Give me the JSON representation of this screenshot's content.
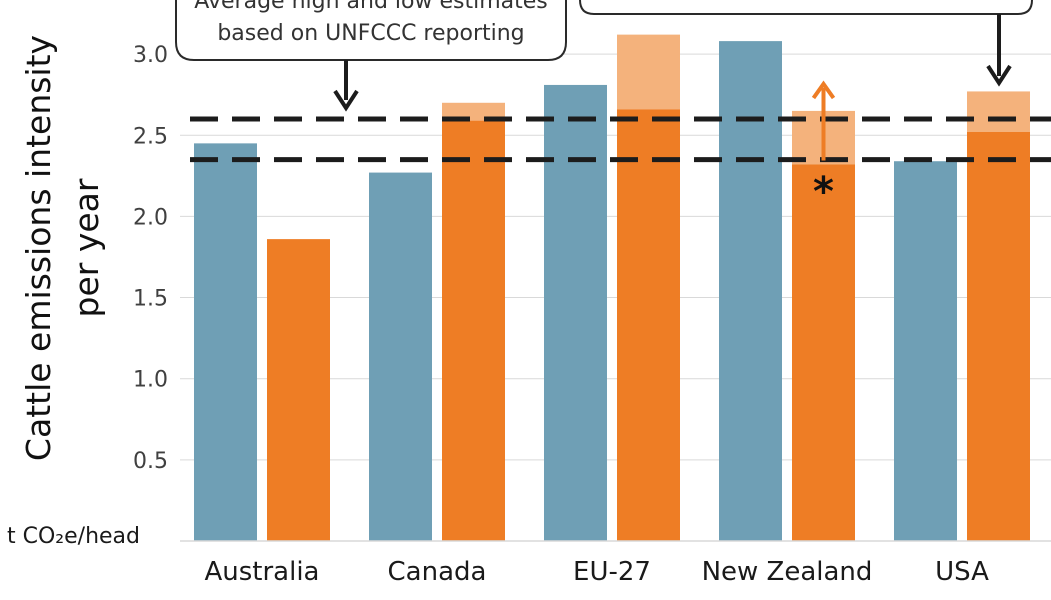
{
  "chart_data": {
    "type": "bar",
    "categories": [
      "Australia",
      "Canada",
      "EU-27",
      "New Zealand",
      "USA"
    ],
    "ylabel_line1": "Cattle emissions intensity",
    "ylabel_line2": "per year",
    "unit_label": "t CO₂e/head",
    "ylim": [
      0,
      3.3
    ],
    "yticks": [
      0.5,
      1.0,
      1.5,
      2.0,
      2.5,
      3.0
    ],
    "ytick_labels": [
      "0.5",
      "1.0",
      "1.5",
      "2.0",
      "2.5",
      "3.0"
    ],
    "grid": true,
    "series": [
      {
        "values": [
          2.45,
          2.27,
          2.81,
          3.08,
          2.34
        ],
        "color": "#6f9fb5"
      },
      {
        "values": [
          1.86,
          2.59,
          2.66,
          2.32,
          2.52
        ],
        "color": "#ee7d25"
      },
      {
        "values": [
          0,
          2.7,
          3.12,
          2.65,
          2.77
        ],
        "color": "#f4b27c",
        "stacked_on_previous": true
      }
    ],
    "reference_lines": [
      2.6,
      2.35
    ],
    "callout_left_lines": [
      "Average high and low estimates",
      "based on UNFCCC reporting"
    ],
    "annotation_symbol": "*",
    "colors": {
      "blue": "#6f9fb5",
      "orange": "#ee7d25",
      "light_orange": "#f4b27c",
      "dash": "#1c1c1c",
      "grid": "#d9d9d9"
    }
  }
}
